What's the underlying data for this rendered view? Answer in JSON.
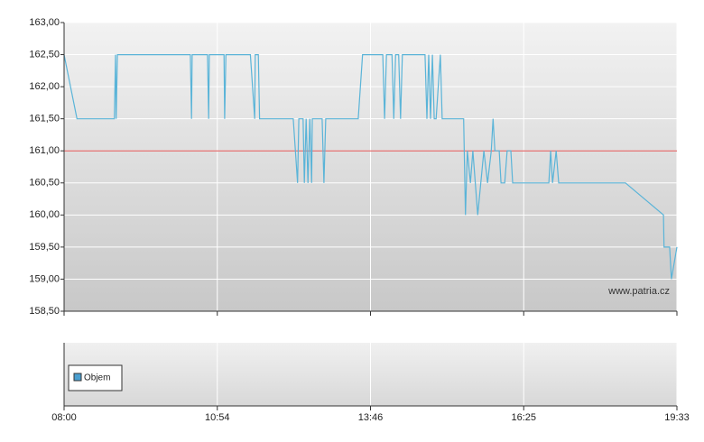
{
  "chart_data": {
    "type": "line",
    "watermark": "www.patria.cz",
    "x": [
      0,
      2.1,
      8.2,
      8.4,
      8.5,
      8.7,
      20.6,
      20.8,
      20.9,
      23.4,
      23.6,
      23.7,
      26.1,
      26.2,
      26.4,
      30.4,
      31.1,
      31.2,
      31.7,
      31.9,
      37.4,
      38.1,
      38.3,
      39.0,
      39.2,
      39.5,
      39.8,
      40.1,
      40.4,
      40.5,
      42.1,
      42.4,
      42.7,
      48.0,
      48.7,
      52.0,
      52.3,
      52.6,
      53.5,
      53.8,
      54.1,
      54.6,
      54.9,
      55.2,
      58.9,
      59.2,
      59.5,
      59.8,
      60.1,
      60.4,
      60.7,
      61.4,
      61.7,
      65.2,
      65.5,
      65.8,
      66.3,
      66.7,
      67.5,
      68.5,
      69.1,
      69.7,
      70.0,
      70.3,
      71.0,
      71.3,
      71.9,
      72.3,
      72.9,
      73.2,
      79.1,
      79.4,
      79.7,
      80.3,
      80.7,
      91.6,
      97.8,
      97.9,
      98.8,
      99.1,
      100
    ],
    "series": [
      {
        "color": "#5ab4d8",
        "values": [
          162.5,
          161.5,
          161.5,
          162.5,
          161.5,
          162.5,
          162.5,
          161.5,
          162.5,
          162.5,
          161.5,
          162.5,
          162.5,
          161.5,
          162.5,
          162.5,
          161.5,
          162.5,
          162.5,
          161.5,
          161.5,
          160.5,
          161.5,
          161.5,
          160.5,
          161.5,
          160.5,
          161.5,
          160.5,
          161.5,
          161.5,
          160.5,
          161.5,
          161.5,
          162.5,
          162.5,
          161.5,
          162.5,
          162.5,
          161.5,
          162.5,
          162.5,
          161.5,
          162.5,
          162.5,
          161.5,
          162.5,
          161.5,
          162.5,
          161.5,
          161.5,
          162.5,
          161.5,
          161.5,
          160.0,
          161.0,
          160.5,
          161.0,
          160.0,
          161.0,
          160.5,
          161.0,
          161.5,
          161.0,
          161.0,
          160.5,
          160.5,
          161.0,
          161.0,
          160.5,
          160.5,
          161.0,
          160.5,
          161.0,
          160.5,
          160.5,
          160.0,
          159.5,
          159.5,
          159.0,
          159.5
        ]
      }
    ],
    "reference_line": {
      "value": 161,
      "color": "#e05050"
    },
    "xlim": [
      0,
      100
    ],
    "xticks": [
      {
        "value": 0,
        "label": "08:00"
      },
      {
        "value": 25,
        "label": "10:54"
      },
      {
        "value": 50,
        "label": "13:46"
      },
      {
        "value": 75,
        "label": "16:25"
      },
      {
        "value": 100,
        "label": "19:33"
      }
    ],
    "ylim": [
      158.5,
      163
    ],
    "yticks": [
      {
        "value": 158.5,
        "label": "158,50"
      },
      {
        "value": 159,
        "label": "159,00"
      },
      {
        "value": 159.5,
        "label": "159,50"
      },
      {
        "value": 160,
        "label": "160,00"
      },
      {
        "value": 160.5,
        "label": "160,50"
      },
      {
        "value": 161,
        "label": "161,00"
      },
      {
        "value": 161.5,
        "label": "161,50"
      },
      {
        "value": 162,
        "label": "162,00"
      },
      {
        "value": 162.5,
        "label": "162,50"
      },
      {
        "value": 163,
        "label": "163,00"
      }
    ],
    "grid": true,
    "volume": {
      "name": "Objem",
      "color": "#4a9fd0"
    }
  }
}
